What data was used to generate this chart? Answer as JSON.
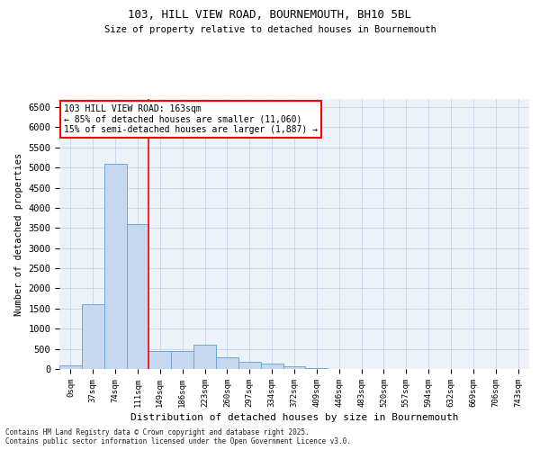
{
  "title1": "103, HILL VIEW ROAD, BOURNEMOUTH, BH10 5BL",
  "title2": "Size of property relative to detached houses in Bournemouth",
  "xlabel": "Distribution of detached houses by size in Bournemouth",
  "ylabel": "Number of detached properties",
  "bin_labels": [
    "0sqm",
    "37sqm",
    "74sqm",
    "111sqm",
    "149sqm",
    "186sqm",
    "223sqm",
    "260sqm",
    "297sqm",
    "334sqm",
    "372sqm",
    "409sqm",
    "446sqm",
    "483sqm",
    "520sqm",
    "557sqm",
    "594sqm",
    "632sqm",
    "669sqm",
    "706sqm",
    "743sqm"
  ],
  "bar_values": [
    100,
    1600,
    5100,
    3600,
    450,
    450,
    600,
    280,
    180,
    130,
    60,
    25,
    10,
    5,
    2,
    1,
    1,
    0,
    0,
    0,
    0
  ],
  "bar_color": "#c5d8ef",
  "bar_edge_color": "#6aaad4",
  "vline_pos": 3.5,
  "vline_color": "red",
  "annotation_title": "103 HILL VIEW ROAD: 163sqm",
  "annotation_line1": "← 85% of detached houses are smaller (11,060)",
  "annotation_line2": "15% of semi-detached houses are larger (1,887) →",
  "ylim": [
    0,
    6700
  ],
  "yticks": [
    0,
    500,
    1000,
    1500,
    2000,
    2500,
    3000,
    3500,
    4000,
    4500,
    5000,
    5500,
    6000,
    6500
  ],
  "grid_color": "#c8d4e8",
  "bg_color": "#edf2f9",
  "footer1": "Contains HM Land Registry data © Crown copyright and database right 2025.",
  "footer2": "Contains public sector information licensed under the Open Government Licence v3.0."
}
